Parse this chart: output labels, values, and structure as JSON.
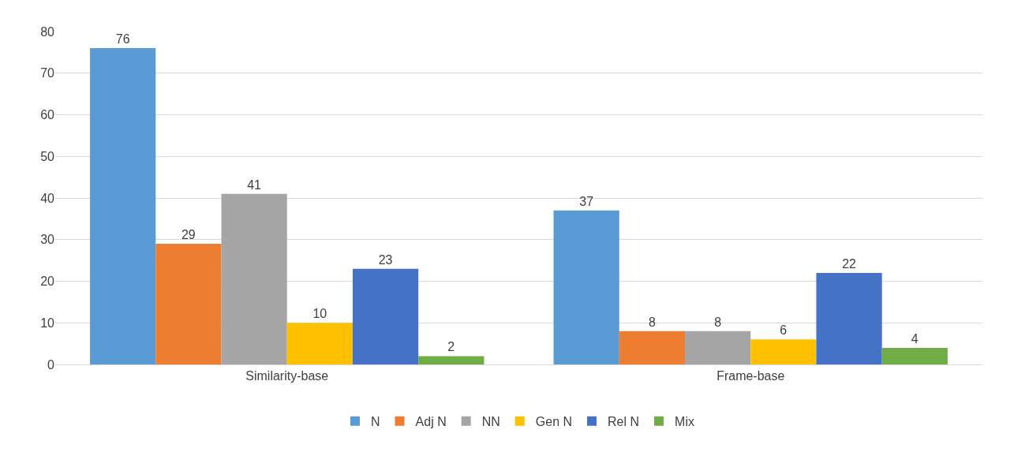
{
  "chart_data": {
    "type": "bar",
    "categories": [
      "Similarity-base",
      "Frame-base"
    ],
    "series": [
      {
        "name": "N",
        "color": "#5b9bd5",
        "values": [
          76,
          37
        ]
      },
      {
        "name": "Adj N",
        "color": "#ed7d31",
        "values": [
          29,
          8
        ]
      },
      {
        "name": "NN",
        "color": "#a5a5a5",
        "values": [
          41,
          8
        ]
      },
      {
        "name": "Gen N",
        "color": "#ffc000",
        "values": [
          10,
          6
        ]
      },
      {
        "name": "Rel N",
        "color": "#4472c4",
        "values": [
          23,
          22
        ]
      },
      {
        "name": "Mix",
        "color": "#70ad47",
        "values": [
          2,
          4
        ]
      }
    ],
    "ylim": [
      0,
      80
    ],
    "yticks": [
      0,
      10,
      20,
      30,
      40,
      50,
      60,
      70,
      80
    ],
    "grid": "y",
    "legend": "bottom",
    "data_labels": true
  }
}
